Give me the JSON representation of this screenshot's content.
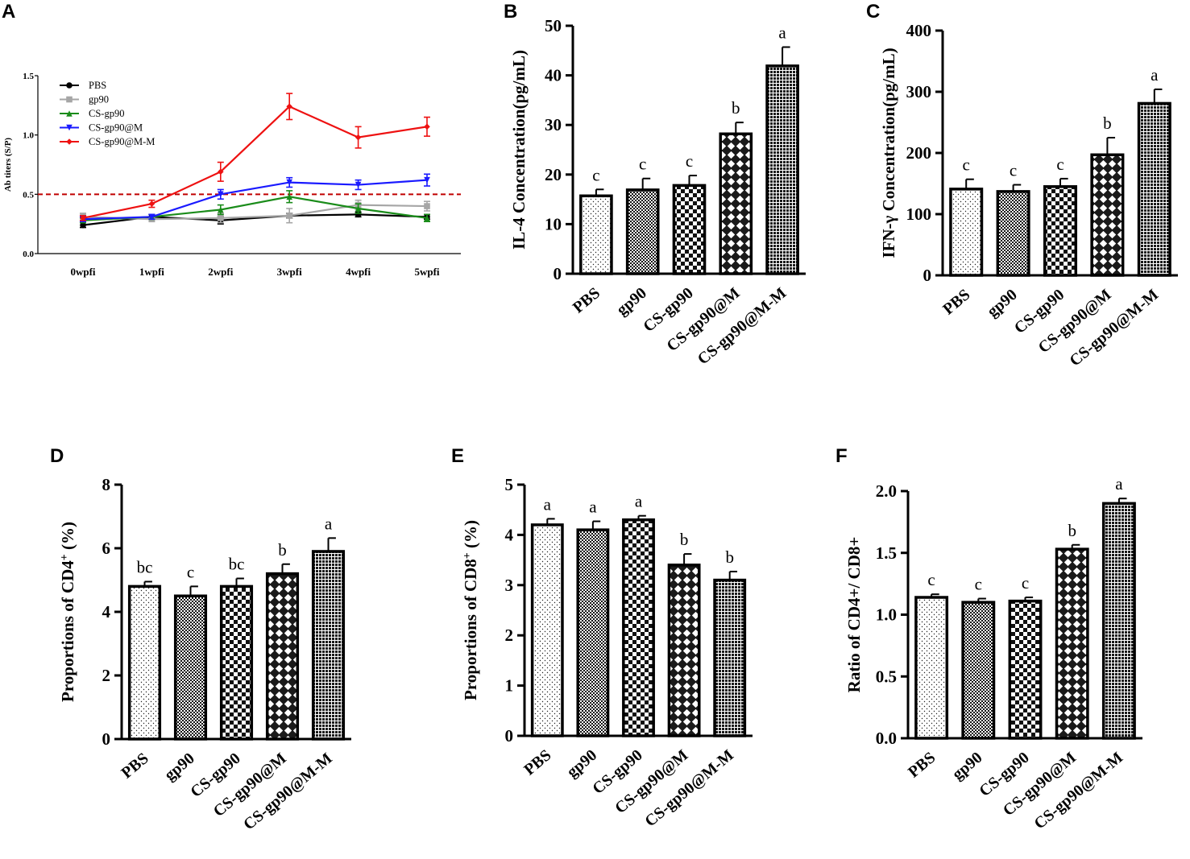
{
  "panels": [
    {
      "label": "A",
      "type": "line",
      "ylabel": "Ab titers (S/P)",
      "xlabel": "",
      "categories": [
        "0wpfi",
        "1wpfi",
        "2wpfi",
        "3wpfi",
        "4wpfi",
        "5wpfi"
      ],
      "ylim": [
        0,
        1.5
      ],
      "yticks": [
        0.0,
        0.5,
        1.0,
        1.5
      ],
      "ytick_labels": [
        "0.0",
        "0.5",
        "1.0",
        "1.5"
      ],
      "threshold": 0.5,
      "series": [
        {
          "name": "PBS",
          "color": "#000000",
          "marker": "circle",
          "values": [
            0.24,
            0.31,
            0.28,
            0.32,
            0.33,
            0.31
          ],
          "errors": [
            0.02,
            0.02,
            0.03,
            0.02,
            0.02,
            0.02
          ]
        },
        {
          "name": "gp90",
          "color": "#a6a6a6",
          "marker": "square",
          "values": [
            0.31,
            0.29,
            0.3,
            0.32,
            0.41,
            0.4
          ],
          "errors": [
            0.03,
            0.02,
            0.04,
            0.06,
            0.04,
            0.04
          ]
        },
        {
          "name": "CS-gp90",
          "color": "#1a8c1a",
          "marker": "triangle-up",
          "values": [
            0.28,
            0.31,
            0.37,
            0.48,
            0.38,
            0.3
          ],
          "errors": [
            0.02,
            0.02,
            0.04,
            0.05,
            0.04,
            0.03
          ]
        },
        {
          "name": "CS-gp90@M",
          "color": "#1a1aff",
          "marker": "triangle-down",
          "values": [
            0.29,
            0.31,
            0.5,
            0.6,
            0.58,
            0.62
          ],
          "errors": [
            0.02,
            0.02,
            0.04,
            0.04,
            0.04,
            0.05
          ]
        },
        {
          "name": "CS-gp90@M-M",
          "color": "#ee1111",
          "marker": "diamond",
          "values": [
            0.3,
            0.42,
            0.69,
            1.24,
            0.98,
            1.07
          ],
          "errors": [
            0.02,
            0.03,
            0.08,
            0.11,
            0.09,
            0.08
          ]
        }
      ]
    },
    {
      "label": "B",
      "type": "bar",
      "ylabel": "IL-4 Concentration(pg/mL)",
      "categories": [
        "PBS",
        "gp90",
        "CS-gp90",
        "CS-gp90@M",
        "CS-gp90@M-M"
      ],
      "values": [
        15.7,
        16.9,
        17.8,
        28.2,
        41.9
      ],
      "errors": [
        1.3,
        2.3,
        2.0,
        2.3,
        3.8
      ],
      "sig": [
        "c",
        "c",
        "c",
        "b",
        "a"
      ],
      "ylim": [
        0,
        50
      ],
      "yticks": [
        0,
        10,
        20,
        30,
        40,
        50
      ],
      "ytick_labels": [
        "0",
        "10",
        "20",
        "30",
        "40",
        "50"
      ]
    },
    {
      "label": "C",
      "type": "bar",
      "ylabel": "IFN-γ Concentration(pg/mL)",
      "categories": [
        "PBS",
        "gp90",
        "CS-gp90",
        "CS-gp90@M",
        "CS-gp90@M-M"
      ],
      "values": [
        141,
        137,
        145,
        197,
        281
      ],
      "errors": [
        16,
        11,
        13,
        28,
        23
      ],
      "sig": [
        "c",
        "c",
        "c",
        "b",
        "a"
      ],
      "ylim": [
        0,
        400
      ],
      "yticks": [
        0,
        100,
        200,
        300,
        400
      ],
      "ytick_labels": [
        "0",
        "100",
        "200",
        "300",
        "400"
      ]
    },
    {
      "label": "D",
      "type": "bar",
      "ylabel": "Proportions of CD4",
      "ylabel_sup": "+",
      "ylabel_unit": " (%)",
      "categories": [
        "PBS",
        "gp90",
        "CS-gp90",
        "CS-gp90@M",
        "CS-gp90@M-M"
      ],
      "values": [
        4.8,
        4.5,
        4.8,
        5.2,
        5.9
      ],
      "errors": [
        0.15,
        0.3,
        0.25,
        0.3,
        0.42
      ],
      "sig": [
        "bc",
        "c",
        "bc",
        "b",
        "a"
      ],
      "ylim": [
        0,
        8
      ],
      "yticks": [
        0,
        2,
        4,
        6,
        8
      ],
      "ytick_labels": [
        "0",
        "2",
        "4",
        "6",
        "8"
      ]
    },
    {
      "label": "E",
      "type": "bar",
      "ylabel": "Proportions of CD8",
      "ylabel_sup": "+",
      "ylabel_unit": " (%)",
      "categories": [
        "PBS",
        "gp90",
        "CS-gp90",
        "CS-gp90@M",
        "CS-gp90@M-M"
      ],
      "values": [
        4.2,
        4.1,
        4.3,
        3.4,
        3.1
      ],
      "errors": [
        0.12,
        0.17,
        0.08,
        0.22,
        0.17
      ],
      "sig": [
        "a",
        "a",
        "a",
        "b",
        "b"
      ],
      "ylim": [
        0,
        5
      ],
      "yticks": [
        0,
        1,
        2,
        3,
        4,
        5
      ],
      "ytick_labels": [
        "0",
        "1",
        "2",
        "3",
        "4",
        "5"
      ]
    },
    {
      "label": "F",
      "type": "bar",
      "ylabel": "Ratio of CD4+/ CD8+",
      "categories": [
        "PBS",
        "gp90",
        "CS-gp90",
        "CS-gp90@M",
        "CS-gp90@M-M"
      ],
      "values": [
        1.14,
        1.1,
        1.11,
        1.53,
        1.9
      ],
      "errors": [
        0.025,
        0.03,
        0.03,
        0.035,
        0.04
      ],
      "sig": [
        "c",
        "c",
        "c",
        "b",
        "a"
      ],
      "ylim": [
        0,
        2.0
      ],
      "yticks": [
        0.0,
        0.5,
        1.0,
        1.5,
        2.0
      ],
      "ytick_labels": [
        "0.0",
        "0.5",
        "1.0",
        "1.5",
        "2.0"
      ]
    }
  ]
}
